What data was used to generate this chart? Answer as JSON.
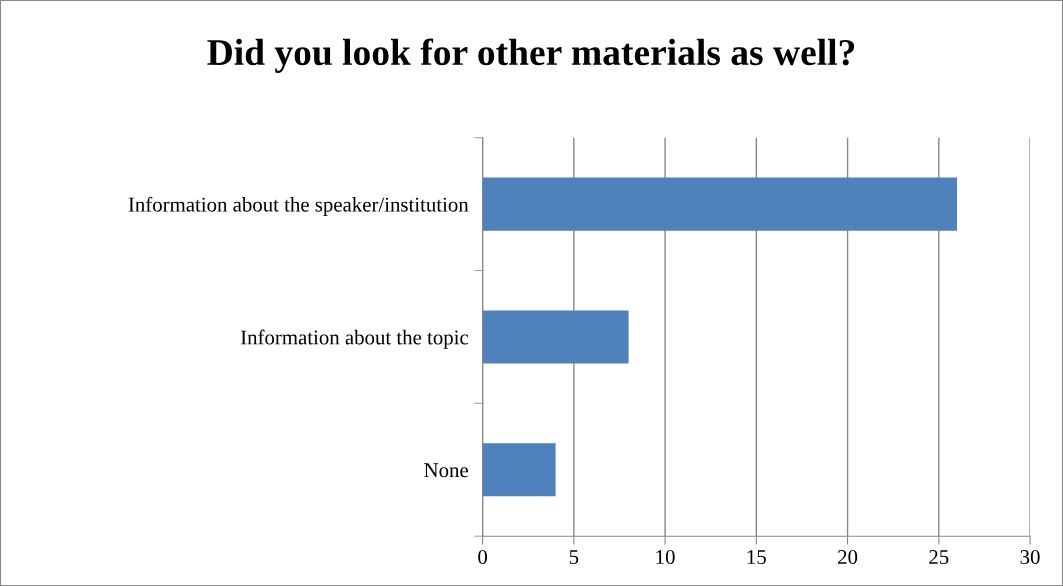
{
  "chart_data": {
    "type": "bar",
    "orientation": "horizontal",
    "title": "Did you look for other materials as well?",
    "categories": [
      "Information about the speaker/institution",
      "Information about the topic",
      "None"
    ],
    "values": [
      26,
      8,
      4
    ],
    "color": "#4f81bd",
    "xlim": [
      0,
      30
    ],
    "xticks": [
      0,
      5,
      10,
      15,
      20,
      25,
      30
    ],
    "grid": "x",
    "legend": false
  }
}
